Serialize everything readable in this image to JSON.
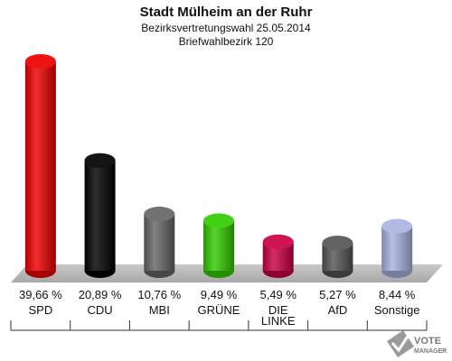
{
  "header": {
    "title": "Stadt Mülheim an der Ruhr",
    "subtitle": "Bezirksvertretungswahl 25.05.2014",
    "subtitle2": "Briefwahlbezirk 120"
  },
  "chart_data": {
    "type": "bar",
    "title": "Stadt Mülheim an der Ruhr",
    "subtitle": "Bezirksvertretungswahl 25.05.2014 / Briefwahlbezirk 120",
    "categories": [
      "SPD",
      "CDU",
      "MBI",
      "GRÜNE",
      "DIE LINKE",
      "AfD",
      "Sonstige"
    ],
    "values": [
      39.66,
      20.89,
      10.76,
      9.49,
      5.49,
      5.27,
      8.44
    ],
    "value_labels": [
      "39,66 %",
      "20,89 %",
      "10,76 %",
      "9,49 %",
      "5,49 %",
      "5,27 %",
      "8,44 %"
    ],
    "colors": [
      "#ee0000",
      "#000000",
      "#666666",
      "#33cc00",
      "#cc0044",
      "#555555",
      "#aab4e0"
    ],
    "grid": false,
    "legend": "none"
  },
  "logo": {
    "line1": "VOTE",
    "line2": "MANAGER"
  }
}
